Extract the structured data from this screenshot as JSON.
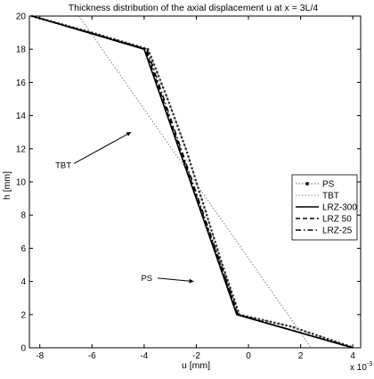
{
  "chart_data": {
    "type": "line",
    "title": "Thickness distribution of the axial displacement u at x = 3L/4",
    "xlabel": "u [mm]",
    "ylabel": "h [mm]",
    "x_exponent_label": "x 10",
    "x_exponent_power": "-3",
    "xlim": [
      -8.4,
      4.3
    ],
    "ylim": [
      0,
      20
    ],
    "xticks": [
      -8,
      -6,
      -4,
      -2,
      0,
      2,
      4
    ],
    "yticks": [
      0,
      2,
      4,
      6,
      8,
      10,
      12,
      14,
      16,
      18,
      20
    ],
    "grid": false,
    "legend_position": "right",
    "series": [
      {
        "name": "PS",
        "style": "dotted-markers",
        "color": "#555555",
        "x": [
          -8.3,
          -6.0,
          -3.85,
          -3.1,
          -2.4,
          -1.6,
          -1.0,
          -0.35,
          1.6,
          4.05
        ],
        "y": [
          20,
          19.0,
          18.0,
          15.0,
          12.0,
          8.0,
          5.0,
          2.0,
          1.3,
          0
        ]
      },
      {
        "name": "TBT",
        "style": "dotted",
        "color": "#888888",
        "x": [
          -6.5,
          2.4
        ],
        "y": [
          20,
          0
        ]
      },
      {
        "name": "LRZ-300",
        "style": "solid",
        "color": "#000000",
        "x": [
          -8.3,
          -4.0,
          -0.45,
          4.0
        ],
        "y": [
          20,
          18.0,
          2.0,
          0
        ]
      },
      {
        "name": "LRZ 50",
        "style": "dashed",
        "color": "#000000",
        "x": [
          -8.3,
          -3.95,
          -0.42,
          4.0
        ],
        "y": [
          20,
          18.0,
          2.0,
          0
        ]
      },
      {
        "name": "LRZ-25",
        "style": "dashdot",
        "color": "#000000",
        "x": [
          -8.3,
          -3.9,
          -0.4,
          4.0
        ],
        "y": [
          20,
          18.0,
          2.0,
          0
        ]
      }
    ],
    "annotations": [
      {
        "text": "TBT",
        "x": -7.1,
        "y": 11.0,
        "arrow_to": [
          -4.5,
          13.0
        ]
      },
      {
        "text": "PS",
        "x": -3.9,
        "y": 4.2,
        "arrow_to": [
          -2.1,
          4.0
        ]
      }
    ]
  }
}
